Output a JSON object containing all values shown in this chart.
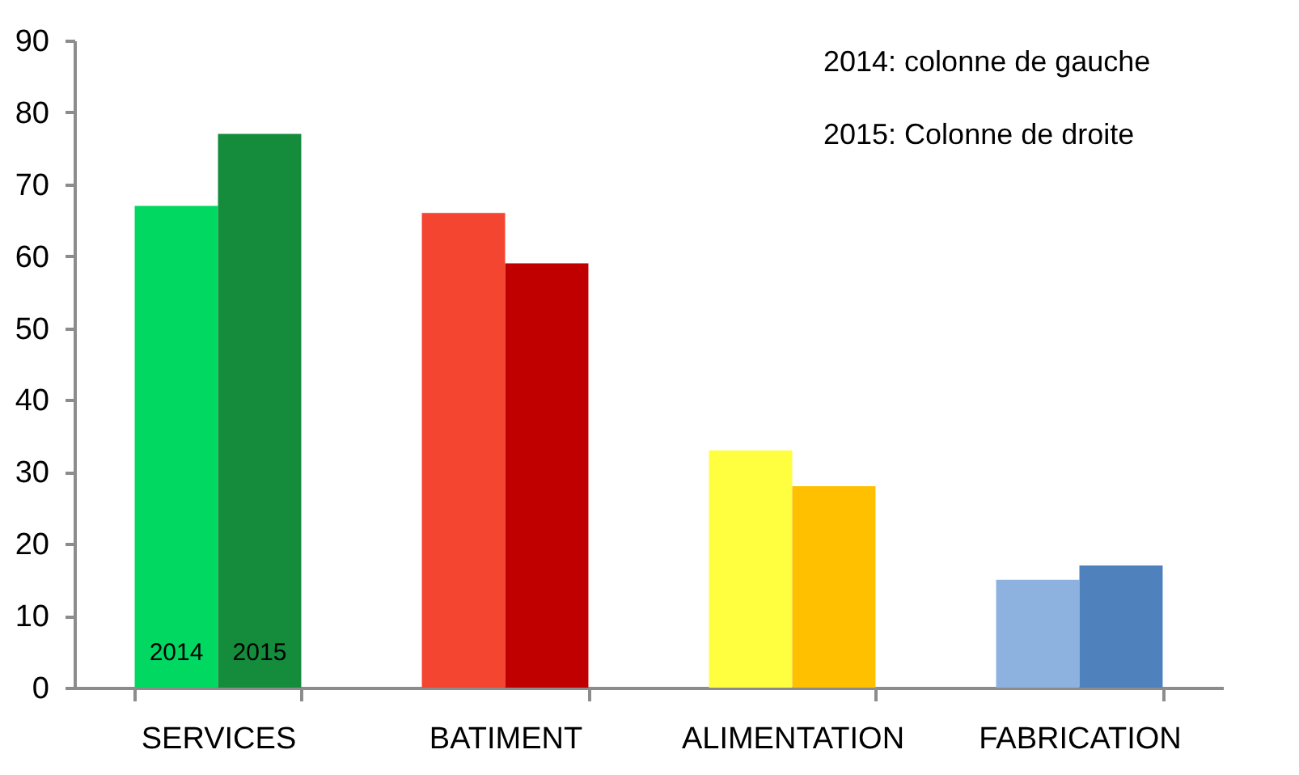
{
  "chart_data": {
    "type": "bar",
    "categories": [
      "SERVICES",
      "BATIMENT",
      "ALIMENTATION",
      "FABRICATION"
    ],
    "series": [
      {
        "name": "2014",
        "colors": [
          "#00d862",
          "#f44530",
          "#ffff40",
          "#8db2e0"
        ],
        "values": [
          67,
          66,
          33,
          15
        ]
      },
      {
        "name": "2015",
        "colors": [
          "#148c3c",
          "#c00000",
          "#ffc000",
          "#4f81bd"
        ],
        "values": [
          77,
          59,
          28,
          17
        ]
      }
    ],
    "ylim": [
      0,
      90
    ],
    "yticks": [
      0,
      10,
      20,
      30,
      40,
      50,
      60,
      70,
      80,
      90
    ],
    "annotations": [
      "2014: colonne de gauche",
      "2015: Colonne de droite"
    ]
  }
}
